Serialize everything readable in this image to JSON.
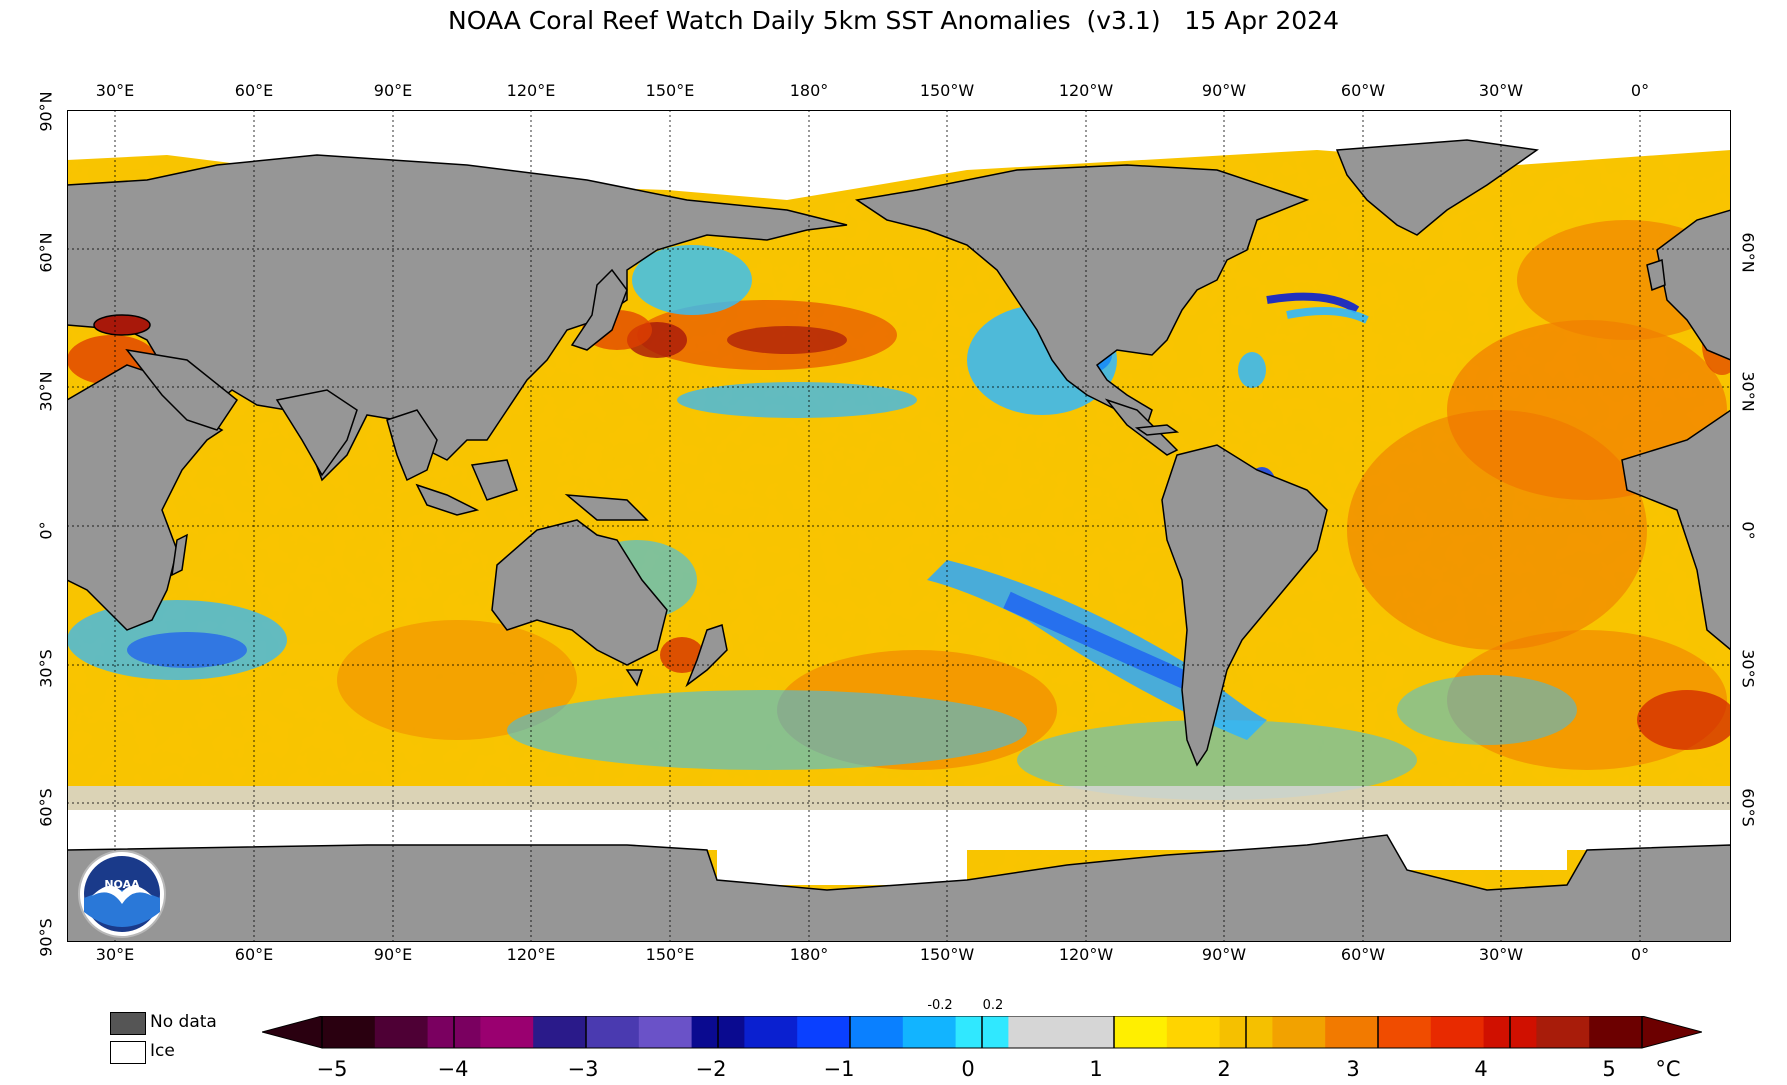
{
  "title": "NOAA Coral Reef Watch Daily 5km SST Anomalies  (v3.1)   15 Apr 2024",
  "lon_labels": [
    "30°E",
    "60°E",
    "90°E",
    "120°E",
    "150°E",
    "180°",
    "150°W",
    "120°W",
    "90°W",
    "60°W",
    "30°W",
    "0°"
  ],
  "lat_labels_left": [
    "90°N",
    "60°N",
    "30°N",
    "0°",
    "30°S",
    "60°S",
    "90°S"
  ],
  "lat_labels_right": [
    "60°N",
    "30°N",
    "0°",
    "30°S",
    "60°S"
  ],
  "legend": {
    "no_data_label": "No data",
    "ice_label": "Ice",
    "no_data_color": "#555555",
    "ice_color": "#ffffff",
    "land_color": "#969696"
  },
  "colorbar": {
    "unit": "°C",
    "tick_labels": [
      "−5",
      "−4",
      "−3",
      "−2",
      "−1",
      "0",
      "1",
      "2",
      "3",
      "4",
      "5"
    ],
    "small_labels": [
      "-0.2",
      "0.2"
    ],
    "range": [
      -5,
      5
    ],
    "colors": [
      "#2a0010",
      "#4e0035",
      "#7a0060",
      "#9a0070",
      "#2a1a8a",
      "#4a3ab0",
      "#6a52c8",
      "#0a0a90",
      "#0a20d0",
      "#0a40ff",
      "#0a80ff",
      "#12b4ff",
      "#30e8ff",
      "#d6d6d6",
      "#d6d6d6",
      "#ffef00",
      "#ffd400",
      "#f5c000",
      "#f2a200",
      "#f27a00",
      "#f04c00",
      "#e82a00",
      "#d01000",
      "#a81c0a",
      "#6c0000"
    ]
  }
}
